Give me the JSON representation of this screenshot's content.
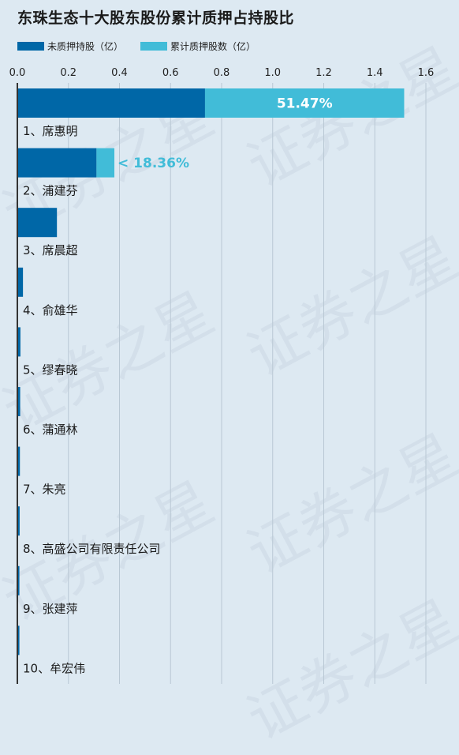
{
  "title": "东珠生态十大股东股份累计质押占持股比",
  "legend": {
    "unpledged_label": "未质押持股（亿）",
    "pledged_label": "累计质押股数（亿）"
  },
  "watermark_text": "证券之星",
  "colors": {
    "unpledged": "#0067a7",
    "pledged": "#41bcd8",
    "background": "#dde9f2",
    "grid": "#b9c8d4",
    "axis": "#333333"
  },
  "chart_data": {
    "type": "bar",
    "orientation": "horizontal",
    "stacked": true,
    "title": "东珠生态十大股东股份累计质押占持股比",
    "xlim": [
      0,
      1.6
    ],
    "xticks": [
      "0.0",
      "0.2",
      "0.4",
      "0.6",
      "0.8",
      "1.0",
      "1.2",
      "1.4",
      "1.6"
    ],
    "grid": true,
    "legend_position": "top-left",
    "categories": [
      "1、席惠明",
      "2、浦建芬",
      "3、席晨超",
      "4、俞雄华",
      "5、缪春晓",
      "6、蒲通林",
      "7、朱亮",
      "8、高盛公司有限责任公司",
      "9、张建萍",
      "10、牟宏伟"
    ],
    "series": [
      {
        "name": "未质押持股（亿）",
        "values": [
          0.735,
          0.31,
          0.155,
          0.022,
          0.012,
          0.011,
          0.01,
          0.009,
          0.008,
          0.008
        ]
      },
      {
        "name": "累计质押股数（亿）",
        "values": [
          0.78,
          0.07,
          0,
          0,
          0,
          0,
          0,
          0,
          0,
          0
        ]
      }
    ],
    "annotations": [
      {
        "index": 0,
        "text": "51.47%",
        "placement": "inside"
      },
      {
        "index": 1,
        "text": "< 18.36%",
        "placement": "outside"
      }
    ]
  }
}
